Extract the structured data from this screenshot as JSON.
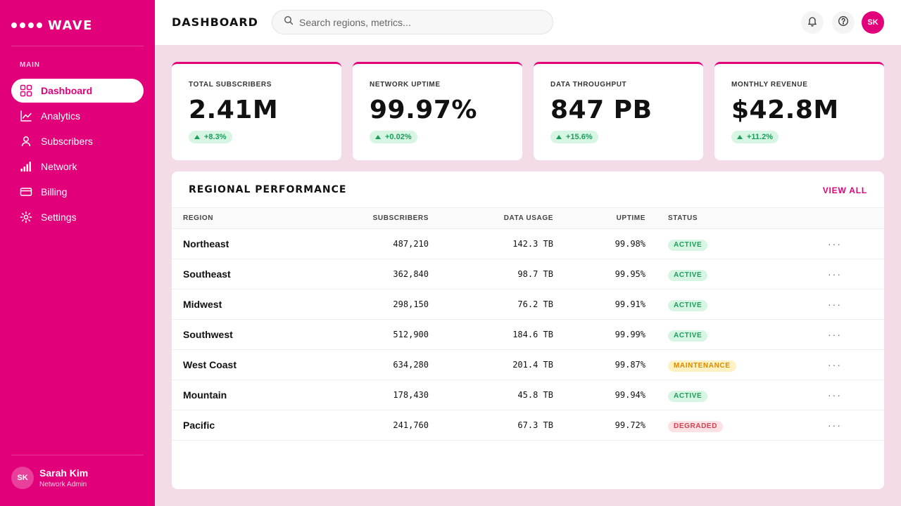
{
  "brand": {
    "name": "WAVE"
  },
  "sidebar": {
    "section_label": "MAIN",
    "items": [
      {
        "label": "Dashboard",
        "icon": "grid-icon",
        "active": true
      },
      {
        "label": "Analytics",
        "icon": "chart-line-icon"
      },
      {
        "label": "Subscribers",
        "icon": "user-icon"
      },
      {
        "label": "Network",
        "icon": "signal-bars-icon"
      },
      {
        "label": "Billing",
        "icon": "credit-card-icon"
      },
      {
        "label": "Settings",
        "icon": "gear-icon"
      }
    ],
    "user": {
      "initials": "SK",
      "name": "Sarah Kim",
      "role": "Network Admin"
    }
  },
  "header": {
    "title": "DASHBOARD",
    "search_placeholder": "Search regions, metrics...",
    "avatar_initials": "SK"
  },
  "stats": [
    {
      "label": "TOTAL SUBSCRIBERS",
      "value": "2.41M",
      "delta": "+8.3%"
    },
    {
      "label": "NETWORK UPTIME",
      "value": "99.97%",
      "delta": "+0.02%"
    },
    {
      "label": "DATA THROUGHPUT",
      "value": "847 PB",
      "delta": "+15.6%"
    },
    {
      "label": "MONTHLY REVENUE",
      "value": "$42.8M",
      "delta": "+11.2%"
    }
  ],
  "regional": {
    "title": "REGIONAL PERFORMANCE",
    "view_all": "VIEW ALL",
    "columns": [
      "REGION",
      "SUBSCRIBERS",
      "DATA USAGE",
      "UPTIME",
      "STATUS"
    ],
    "more_label": "···",
    "rows": [
      {
        "region": "Northeast",
        "subscribers": "487,210",
        "usage": "142.3 TB",
        "uptime": "99.98%",
        "status": "ACTIVE",
        "status_type": "active"
      },
      {
        "region": "Southeast",
        "subscribers": "362,840",
        "usage": "98.7 TB",
        "uptime": "99.95%",
        "status": "ACTIVE",
        "status_type": "active"
      },
      {
        "region": "Midwest",
        "subscribers": "298,150",
        "usage": "76.2 TB",
        "uptime": "99.91%",
        "status": "ACTIVE",
        "status_type": "active"
      },
      {
        "region": "Southwest",
        "subscribers": "512,900",
        "usage": "184.6 TB",
        "uptime": "99.99%",
        "status": "ACTIVE",
        "status_type": "active"
      },
      {
        "region": "West Coast",
        "subscribers": "634,280",
        "usage": "201.4 TB",
        "uptime": "99.87%",
        "status": "MAINTENANCE",
        "status_type": "maintenance"
      },
      {
        "region": "Mountain",
        "subscribers": "178,430",
        "usage": "45.8 TB",
        "uptime": "99.94%",
        "status": "ACTIVE",
        "status_type": "active"
      },
      {
        "region": "Pacific",
        "subscribers": "241,760",
        "usage": "67.3 TB",
        "uptime": "99.72%",
        "status": "DEGRADED",
        "status_type": "degraded"
      }
    ]
  },
  "colors": {
    "accent": "#e2007a",
    "background": "#f3dbe7",
    "success": "#1c9e5a",
    "warning": "#d98a00",
    "danger": "#d9404f"
  }
}
